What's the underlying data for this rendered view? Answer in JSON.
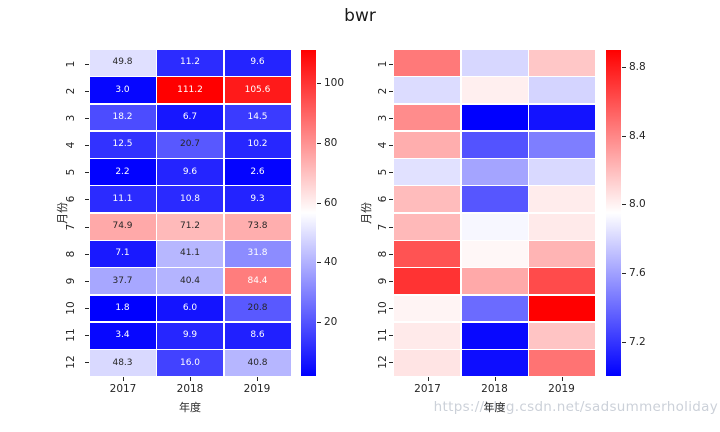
{
  "title": "bwr",
  "watermark": "https://blog.csdn.net/sadsummerholiday",
  "colors": {
    "colormap_blue": "#0000ff",
    "colormap_white": "#ffffff",
    "colormap_red": "#ff0000",
    "text": "#262626",
    "annotation_dark": "#262626",
    "annotation_light": "#ffffff",
    "watermark": "#ccd1d9"
  },
  "chart_data": [
    {
      "type": "heatmap",
      "name": "annotated-heatmap",
      "colormap": "bwr",
      "xlabel": "年度",
      "ylabel": "月份",
      "columns": [
        "2017",
        "2018",
        "2019"
      ],
      "rows": [
        "1",
        "2",
        "3",
        "4",
        "5",
        "6",
        "7",
        "8",
        "9",
        "10",
        "11",
        "12"
      ],
      "values": [
        [
          49.8,
          11.2,
          9.6
        ],
        [
          3.0,
          111.2,
          105.6
        ],
        [
          18.2,
          6.7,
          14.5
        ],
        [
          12.5,
          20.7,
          10.2
        ],
        [
          2.2,
          9.6,
          2.6
        ],
        [
          11.1,
          10.8,
          9.3
        ],
        [
          74.9,
          71.2,
          73.8
        ],
        [
          7.1,
          41.1,
          31.8
        ],
        [
          37.7,
          40.4,
          84.4
        ],
        [
          1.8,
          6.0,
          20.8
        ],
        [
          3.4,
          9.9,
          8.6
        ],
        [
          48.3,
          16.0,
          40.8
        ]
      ],
      "vmin": 1.8,
      "vmax": 111.2,
      "annotated": true,
      "annot_dark_cells": [
        [
          3,
          1
        ],
        [
          9,
          2
        ]
      ],
      "colorbar_tick_labels": [
        "20",
        "40",
        "60",
        "80",
        "100"
      ]
    },
    {
      "type": "heatmap",
      "name": "plain-heatmap",
      "colormap": "bwr",
      "xlabel": "年度",
      "ylabel": "月份",
      "columns": [
        "2017",
        "2018",
        "2019"
      ],
      "rows": [
        "1",
        "2",
        "3",
        "4",
        "5",
        "6",
        "7",
        "8",
        "9",
        "10",
        "11",
        "12"
      ],
      "values_estimated_from_color": true,
      "values": [
        [
          8.45,
          7.8,
          8.16
        ],
        [
          7.82,
          8.01,
          7.79
        ],
        [
          8.38,
          7.0,
          7.07
        ],
        [
          8.25,
          7.31,
          7.47
        ],
        [
          7.84,
          7.61,
          7.81
        ],
        [
          8.2,
          7.32,
          8.02
        ],
        [
          8.21,
          7.92,
          8.03
        ],
        [
          8.59,
          7.98,
          8.23
        ],
        [
          8.71,
          8.27,
          8.62
        ],
        [
          7.99,
          7.4,
          8.9
        ],
        [
          8.03,
          7.03,
          8.17
        ],
        [
          8.05,
          7.05,
          8.47
        ]
      ],
      "vmin": 7.0,
      "vmax": 8.9,
      "annotated": false,
      "colorbar_tick_labels": [
        "7.2",
        "7.6",
        "8.0",
        "8.4",
        "8.8"
      ]
    }
  ]
}
